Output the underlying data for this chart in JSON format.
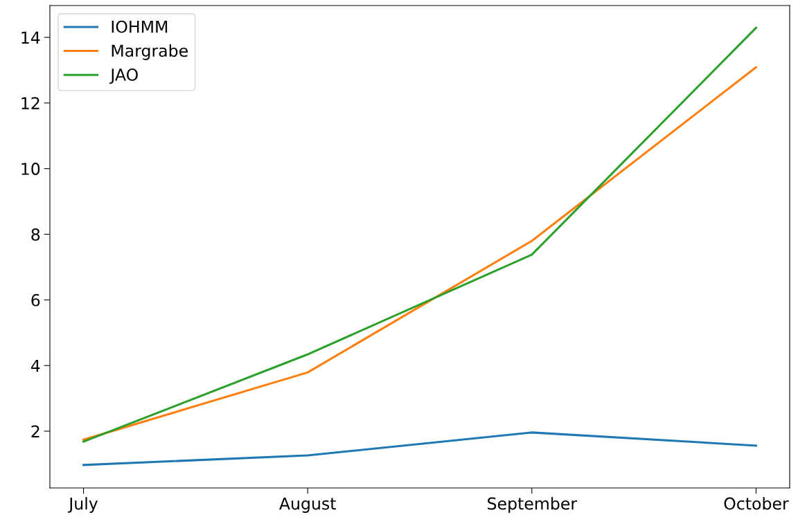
{
  "chart_data": {
    "type": "line",
    "categories": [
      "July",
      "August",
      "September",
      "October"
    ],
    "series": [
      {
        "name": "IOHMM",
        "color": "#1f77b4",
        "values": [
          0.97,
          1.26,
          1.96,
          1.56
        ]
      },
      {
        "name": "Margrabe",
        "color": "#ff7f0e",
        "values": [
          1.74,
          3.79,
          7.8,
          13.09
        ]
      },
      {
        "name": "JAO",
        "color": "#2ca02c",
        "values": [
          1.68,
          4.34,
          7.38,
          14.29
        ]
      }
    ],
    "ylim": [
      0.27,
      14.97
    ],
    "yticks": [
      2,
      4,
      6,
      8,
      10,
      12,
      14
    ],
    "legend": "top left",
    "grid": false,
    "marker": "none",
    "line_style": "solid"
  }
}
